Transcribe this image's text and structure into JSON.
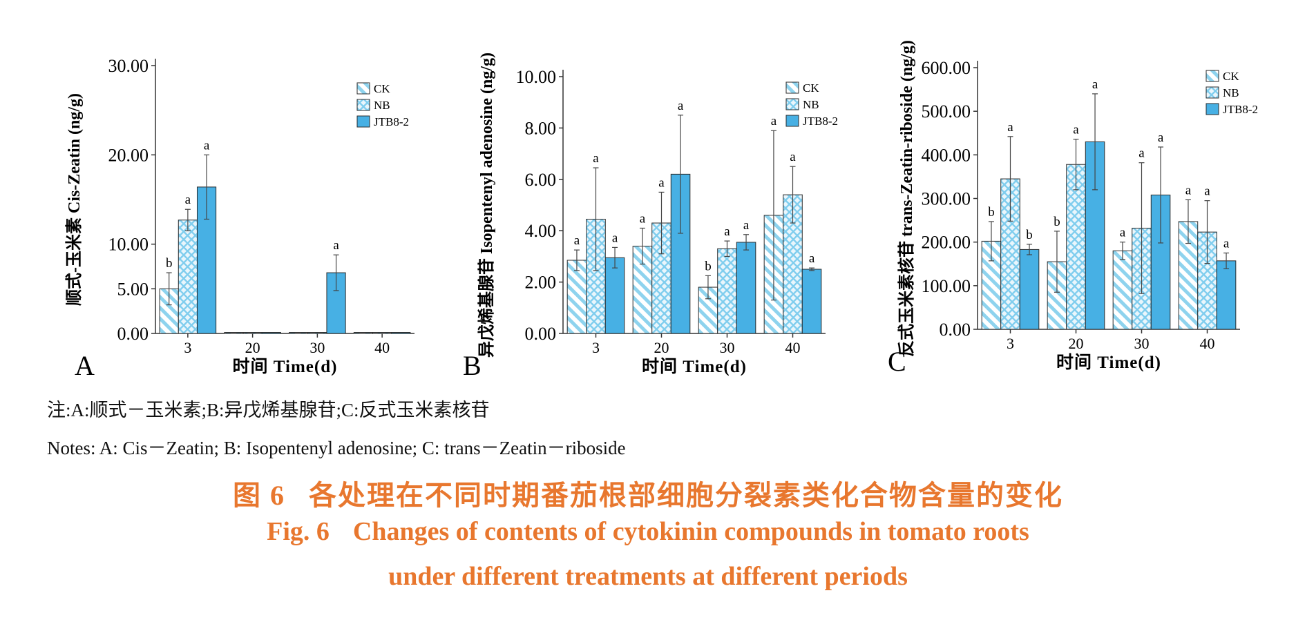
{
  "colors": {
    "ck": "#8ed3ee",
    "nb": "#7fcdee",
    "jtb": "#47b0e4",
    "stroke": "#2b2b2b",
    "caption": "#e8772e"
  },
  "legend": [
    "CK",
    "NB",
    "JTB8-2"
  ],
  "chart_data": [
    {
      "type": "bar",
      "panel_letter": "A",
      "ylabel": "顺式-玉米素 Cis-Zeatin (ng/g)",
      "xlabel": "时间 Time(d)",
      "categories": [
        "3",
        "20",
        "30",
        "40"
      ],
      "ylim": [
        0,
        30
      ],
      "yticks": [
        "0.00",
        "5.00",
        "10.00",
        "20.00",
        "30.00"
      ],
      "ytick_values": [
        0,
        5,
        10,
        20,
        30
      ],
      "legend_position": "top-right",
      "grid": false,
      "series": [
        {
          "name": "CK",
          "values": [
            5.0,
            0,
            0,
            0
          ],
          "errors": [
            1.8,
            0,
            0,
            0
          ],
          "letters": [
            "b",
            "",
            "",
            ""
          ]
        },
        {
          "name": "NB",
          "values": [
            12.7,
            0,
            0,
            0
          ],
          "errors": [
            1.2,
            0,
            0,
            0
          ],
          "letters": [
            "a",
            "",
            "",
            ""
          ]
        },
        {
          "name": "JTB8-2",
          "values": [
            16.4,
            0,
            6.8,
            0
          ],
          "errors": [
            3.6,
            0,
            2.0,
            0
          ],
          "letters": [
            "a",
            "",
            "a",
            ""
          ]
        }
      ]
    },
    {
      "type": "bar",
      "panel_letter": "B",
      "ylabel": "异戊烯基腺苷 Isopentenyl adenosine (ng/g)",
      "xlabel": "时间 Time(d)",
      "categories": [
        "3",
        "20",
        "30",
        "40"
      ],
      "ylim": [
        0,
        10
      ],
      "yticks": [
        "0.00",
        "2.00",
        "4.00",
        "6.00",
        "8.00",
        "10.00"
      ],
      "ytick_values": [
        0,
        2,
        4,
        6,
        8,
        10
      ],
      "legend_position": "top-right",
      "grid": false,
      "series": [
        {
          "name": "CK",
          "values": [
            2.85,
            3.4,
            1.8,
            4.6
          ],
          "errors": [
            0.4,
            0.7,
            0.45,
            3.3
          ],
          "letters": [
            "a",
            "a",
            "b",
            "a"
          ]
        },
        {
          "name": "NB",
          "values": [
            4.45,
            4.3,
            3.3,
            5.4
          ],
          "errors": [
            2.0,
            1.2,
            0.3,
            1.1
          ],
          "letters": [
            "a",
            "a",
            "a",
            "a"
          ]
        },
        {
          "name": "JTB8-2",
          "values": [
            2.95,
            6.2,
            3.55,
            2.5
          ],
          "errors": [
            0.4,
            2.3,
            0.3,
            0.05
          ],
          "letters": [
            "a",
            "a",
            "a",
            "a"
          ]
        }
      ]
    },
    {
      "type": "bar",
      "panel_letter": "C",
      "ylabel": "反式玉米素核苷 trans-Zeatin-riboside (ng/g)",
      "xlabel": "时间 Time(d)",
      "categories": [
        "3",
        "20",
        "30",
        "40"
      ],
      "ylim": [
        0,
        600
      ],
      "yticks": [
        "0.00",
        "100.00",
        "200.00",
        "300.00",
        "400.00",
        "500.00",
        "600.00"
      ],
      "ytick_values": [
        0,
        100,
        200,
        300,
        400,
        500,
        600
      ],
      "legend_position": "top-right",
      "grid": false,
      "series": [
        {
          "name": "CK",
          "values": [
            202,
            155,
            180,
            247
          ],
          "errors": [
            45,
            70,
            20,
            50
          ],
          "letters": [
            "b",
            "b",
            "a",
            "a"
          ]
        },
        {
          "name": "NB",
          "values": [
            345,
            378,
            232,
            223
          ],
          "errors": [
            97,
            58,
            150,
            72
          ],
          "letters": [
            "a",
            "a",
            "a",
            "a"
          ]
        },
        {
          "name": "JTB8-2",
          "values": [
            183,
            430,
            308,
            157
          ],
          "errors": [
            12,
            110,
            110,
            18
          ],
          "letters": [
            "b",
            "a",
            "a",
            "a"
          ]
        }
      ]
    }
  ],
  "notes": {
    "cn": "注:A:顺式－玉米素;B:异戊烯基腺苷;C:反式玉米素核苷",
    "en": "Notes: A: Cis－Zeatin; B: Isopentenyl adenosine; C: trans－Zeatin－riboside"
  },
  "caption": {
    "cn_number": "图 6",
    "cn_title": "各处理在不同时期番茄根部细胞分裂素类化合物含量的变化",
    "en_number": "Fig. 6",
    "en_title_line1": "Changes of contents of cytokinin compounds in tomato roots",
    "en_title_line2": "under different treatments at different periods"
  }
}
